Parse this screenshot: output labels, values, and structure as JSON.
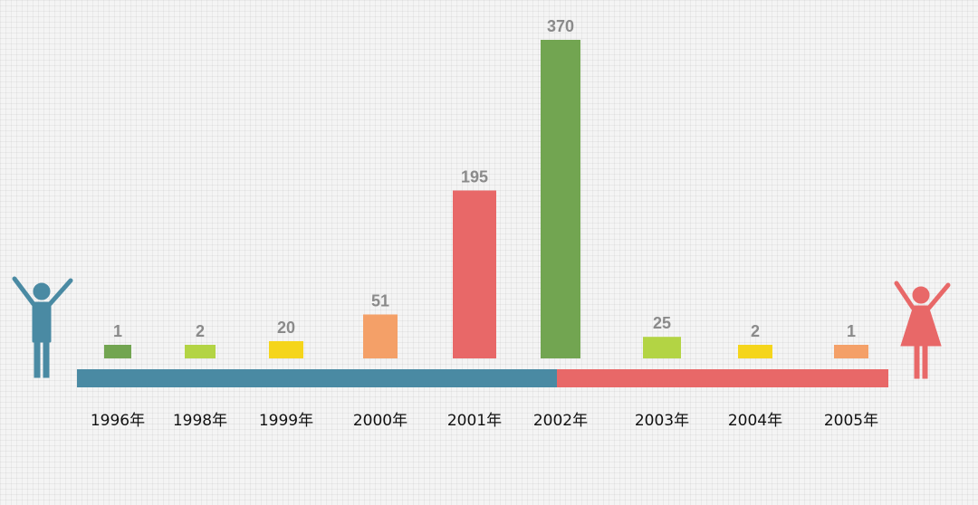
{
  "chart_data": {
    "type": "bar",
    "title": "",
    "xlabel": "",
    "ylabel": "",
    "categories": [
      "1996年",
      "1998年",
      "1999年",
      "2000年",
      "2001年",
      "2002年",
      "2003年",
      "2004年",
      "2005年"
    ],
    "values": [
      1,
      2,
      20,
      51,
      195,
      370,
      25,
      2,
      1
    ],
    "ylim": [
      0,
      370
    ],
    "grid": false,
    "legend": "none",
    "colors": [
      "#72a551",
      "#b3d444",
      "#f5d51b",
      "#f4a068",
      "#e86868",
      "#72a551",
      "#b3d444",
      "#f5d51b",
      "#f4a068"
    ],
    "baseline_colors": {
      "left": "#4a8aa3",
      "right": "#e86868"
    }
  },
  "figures": {
    "left": {
      "icon": "male-figure-icon",
      "color": "#4a8aa3"
    },
    "right": {
      "icon": "female-figure-icon",
      "color": "#e86868"
    }
  }
}
